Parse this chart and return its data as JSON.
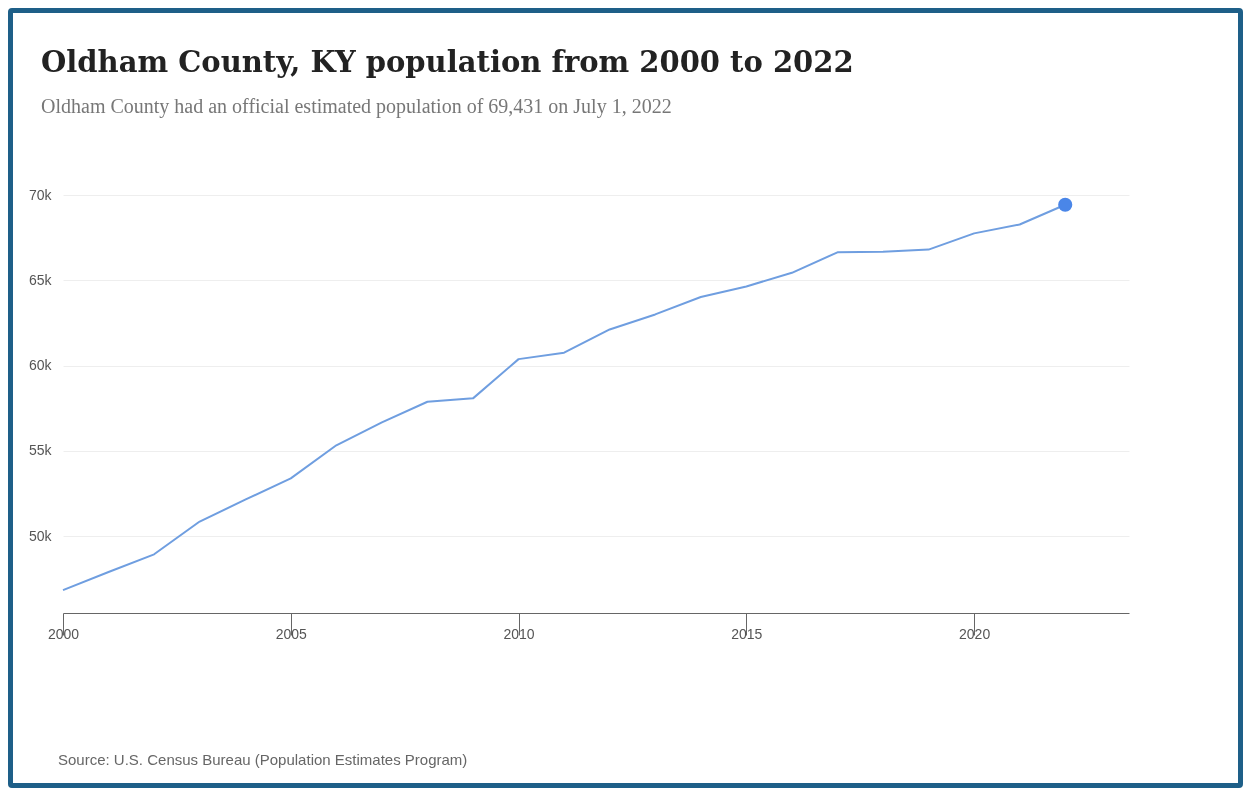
{
  "chart_data": {
    "type": "line",
    "title": "Oldham County, KY population from 2000 to 2022",
    "subtitle": "Oldham County had an official estimated population of 69,431 on July 1, 2022",
    "x": [
      2000,
      2001,
      2002,
      2003,
      2004,
      2005,
      2006,
      2007,
      2008,
      2009,
      2010,
      2011,
      2012,
      2013,
      2014,
      2015,
      2016,
      2017,
      2018,
      2019,
      2020,
      2021,
      2022
    ],
    "series": [
      {
        "color": "#6f9ee0",
        "values": [
          46840,
          47900,
          48940,
          50860,
          52140,
          53390,
          55330,
          56670,
          57880,
          58080,
          60380,
          60760,
          62120,
          63000,
          64020,
          64640,
          65440,
          66640,
          66680,
          66800,
          67750,
          68270,
          69431
        ]
      },
      {
        "type": "scatter",
        "color": "#4a86e8",
        "x": [
          2022
        ],
        "values": [
          69431
        ]
      }
    ],
    "xlim": [
      2000,
      2023.4
    ],
    "xticks": [
      2000,
      2005,
      2010,
      2015,
      2020
    ],
    "ylim": [
      45500,
      70000
    ],
    "yticks": [
      {
        "value": 50000,
        "label": "50k"
      },
      {
        "value": 55000,
        "label": "55k"
      },
      {
        "value": 60000,
        "label": "60k"
      },
      {
        "value": 65000,
        "label": "65k"
      },
      {
        "value": 70000,
        "label": "70k"
      }
    ],
    "grid": "y",
    "annotations": [
      "Source: U.S. Census Bureau (Population Estimates Program)"
    ]
  }
}
